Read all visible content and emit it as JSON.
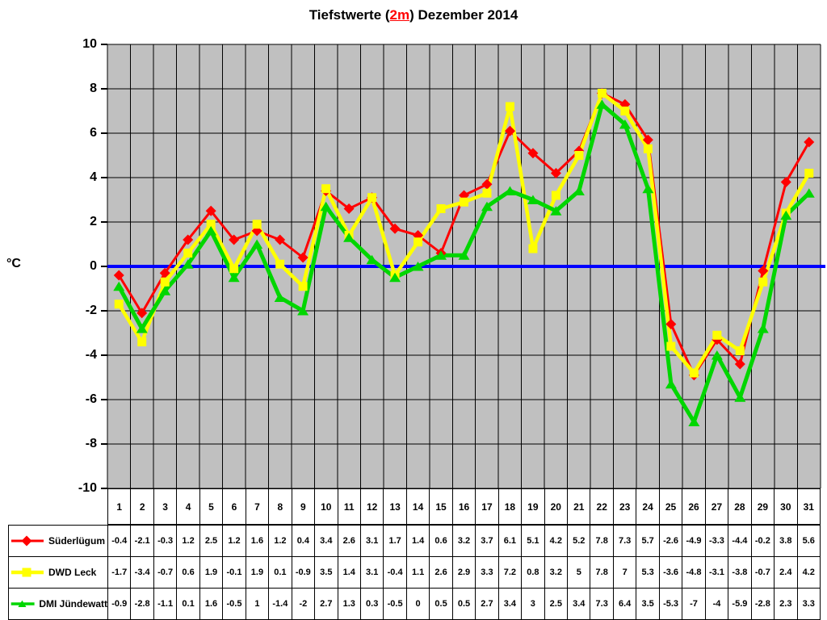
{
  "title": {
    "prefix": "Tiefstwerte (",
    "highlight": "2m",
    "suffix": ") Dezember 2014"
  },
  "axis": {
    "unit": "°C"
  },
  "colors": {
    "plot_background": "#c0c0c0",
    "grid": "#000000",
    "zero_line": "#0000ff",
    "series_red": "#ff0000",
    "series_yellow": "#ffff00",
    "series_green": "#00d600",
    "title_highlight": "#ff0000"
  },
  "chart_data": {
    "type": "line",
    "title": "Tiefstwerte (2m) Dezember 2014",
    "xlabel": "",
    "ylabel": "°C",
    "ylim": [
      -10,
      10
    ],
    "yticks": [
      10,
      8,
      6,
      4,
      2,
      0,
      -2,
      -4,
      -6,
      -8,
      -10
    ],
    "grid": true,
    "legend_position": "bottom-left-table",
    "categories": [
      1,
      2,
      3,
      4,
      5,
      6,
      7,
      8,
      9,
      10,
      11,
      12,
      13,
      14,
      15,
      16,
      17,
      18,
      19,
      20,
      21,
      22,
      23,
      24,
      25,
      26,
      27,
      28,
      29,
      30,
      31
    ],
    "series": [
      {
        "name": "Süderlügum",
        "marker": "diamond",
        "color": "#ff0000",
        "values": [
          -0.4,
          -2.1,
          -0.3,
          1.2,
          2.5,
          1.2,
          1.6,
          1.2,
          0.4,
          3.4,
          2.6,
          3.1,
          1.7,
          1.4,
          0.6,
          3.2,
          3.7,
          6.1,
          5.1,
          4.2,
          5.2,
          7.8,
          7.3,
          5.7,
          -2.6,
          -4.9,
          -3.3,
          -4.4,
          -0.2,
          3.8,
          5.6
        ]
      },
      {
        "name": "DWD Leck",
        "marker": "square",
        "color": "#ffff00",
        "values": [
          -1.7,
          -3.4,
          -0.7,
          0.6,
          1.9,
          -0.1,
          1.9,
          0.1,
          -0.9,
          3.5,
          1.4,
          3.1,
          -0.4,
          1.1,
          2.6,
          2.9,
          3.3,
          7.2,
          0.8,
          3.2,
          5,
          7.8,
          7,
          5.3,
          -3.6,
          -4.8,
          -3.1,
          -3.8,
          -0.7,
          2.4,
          4.2
        ]
      },
      {
        "name": "DMI Jündewatt",
        "marker": "triangle",
        "color": "#00d600",
        "values": [
          -0.9,
          -2.8,
          -1.1,
          0.1,
          1.6,
          -0.5,
          1,
          -1.4,
          -2,
          2.7,
          1.3,
          0.3,
          -0.5,
          0,
          0.5,
          0.5,
          2.7,
          3.4,
          3,
          2.5,
          3.4,
          7.3,
          6.4,
          3.5,
          -5.3,
          -7,
          -4,
          -5.9,
          -2.8,
          2.3,
          3.3
        ]
      }
    ]
  }
}
